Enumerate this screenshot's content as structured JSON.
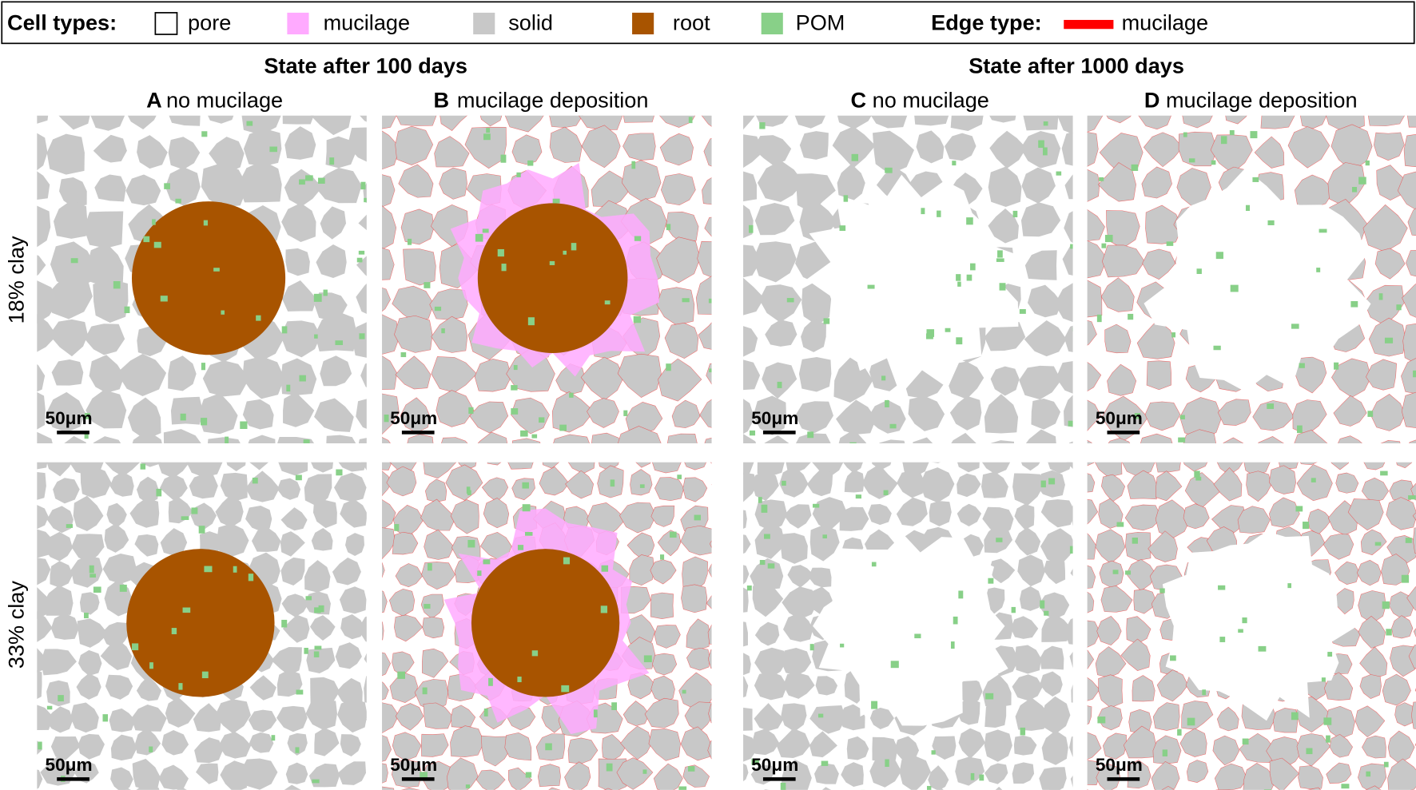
{
  "legend": {
    "cell_types_label": "Cell types:",
    "cell_types": [
      {
        "label": "pore",
        "color": "#ffffff"
      },
      {
        "label": "mucilage",
        "color": "#ffaaff"
      },
      {
        "label": "solid",
        "color": "#c8c8c8"
      },
      {
        "label": "root",
        "color": "#a85400"
      },
      {
        "label": "POM",
        "color": "#88d088"
      }
    ],
    "edge_type_label": "Edge type:",
    "edge_types": [
      {
        "label": "mucilage",
        "color": "#ff0000"
      }
    ]
  },
  "states": [
    "State after 100 days",
    "State after 1000 days"
  ],
  "panels": [
    {
      "letter": "A",
      "title": "no mucilage"
    },
    {
      "letter": "B",
      "title": "mucilage deposition"
    },
    {
      "letter": "C",
      "title": "no mucilage"
    },
    {
      "letter": "D",
      "title": "mucilage deposition"
    }
  ],
  "rows": [
    "18% clay",
    "33% clay"
  ],
  "scale_bar": "50μm"
}
